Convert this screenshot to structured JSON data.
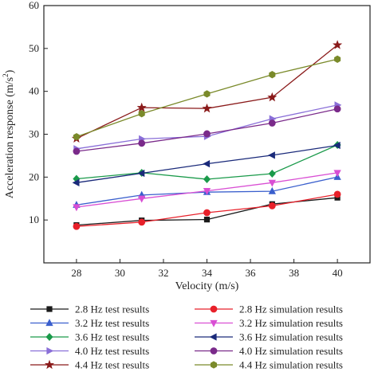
{
  "chart_data": {
    "type": "line",
    "xlabel": "Velocity (m/s)",
    "ylabel_main": "Acceleration response (m/s",
    "ylabel_sup": "2",
    "ylabel_end": ")",
    "xlim": [
      26.5,
      41.5
    ],
    "ylim": [
      0,
      60
    ],
    "xticks": [
      28,
      30,
      32,
      34,
      36,
      38,
      40
    ],
    "yticks": [
      10,
      20,
      30,
      40,
      50,
      60
    ],
    "grid": false,
    "legend_position": "bottom",
    "x": [
      28,
      31,
      34,
      37,
      40
    ],
    "series": [
      {
        "name": "2.8 Hz test results",
        "color": "#1a1a1a",
        "marker": "square",
        "values": [
          8.8,
          9.9,
          10.1,
          13.7,
          15.2
        ]
      },
      {
        "name": "2.8 Hz simulation results",
        "color": "#e8202a",
        "marker": "circle",
        "values": [
          8.5,
          9.5,
          11.7,
          13.3,
          16.0
        ]
      },
      {
        "name": "3.2 Hz test results",
        "color": "#3a5fcd",
        "marker": "triangle-up",
        "values": [
          13.5,
          15.8,
          16.5,
          16.7,
          20.0
        ]
      },
      {
        "name": "3.2 Hz simulation results",
        "color": "#d94fd4",
        "marker": "triangle-down",
        "values": [
          13.0,
          15.0,
          16.8,
          18.7,
          21.0
        ]
      },
      {
        "name": "3.6 Hz test results",
        "color": "#1a9a4a",
        "marker": "diamond",
        "values": [
          19.6,
          21.0,
          19.5,
          20.8,
          27.5
        ]
      },
      {
        "name": "3.6 Hz simulation results",
        "color": "#1a2a7a",
        "marker": "triangle-left",
        "values": [
          18.7,
          20.9,
          23.1,
          25.1,
          27.4
        ]
      },
      {
        "name": "4.0 Hz test results",
        "color": "#8a6fd8",
        "marker": "triangle-right",
        "values": [
          26.6,
          28.9,
          29.5,
          33.6,
          36.8
        ]
      },
      {
        "name": "4.0 Hz simulation results",
        "color": "#7a2a8a",
        "marker": "circle",
        "values": [
          26.0,
          27.9,
          30.1,
          32.6,
          35.9
        ]
      },
      {
        "name": "4.4 Hz test results",
        "color": "#8a1a1a",
        "marker": "star",
        "values": [
          29.0,
          36.2,
          36.0,
          38.6,
          50.8
        ]
      },
      {
        "name": "4.4 Hz simulation results",
        "color": "#7a8a2a",
        "marker": "hexagon",
        "values": [
          29.4,
          34.8,
          39.4,
          43.9,
          47.5
        ]
      }
    ]
  }
}
